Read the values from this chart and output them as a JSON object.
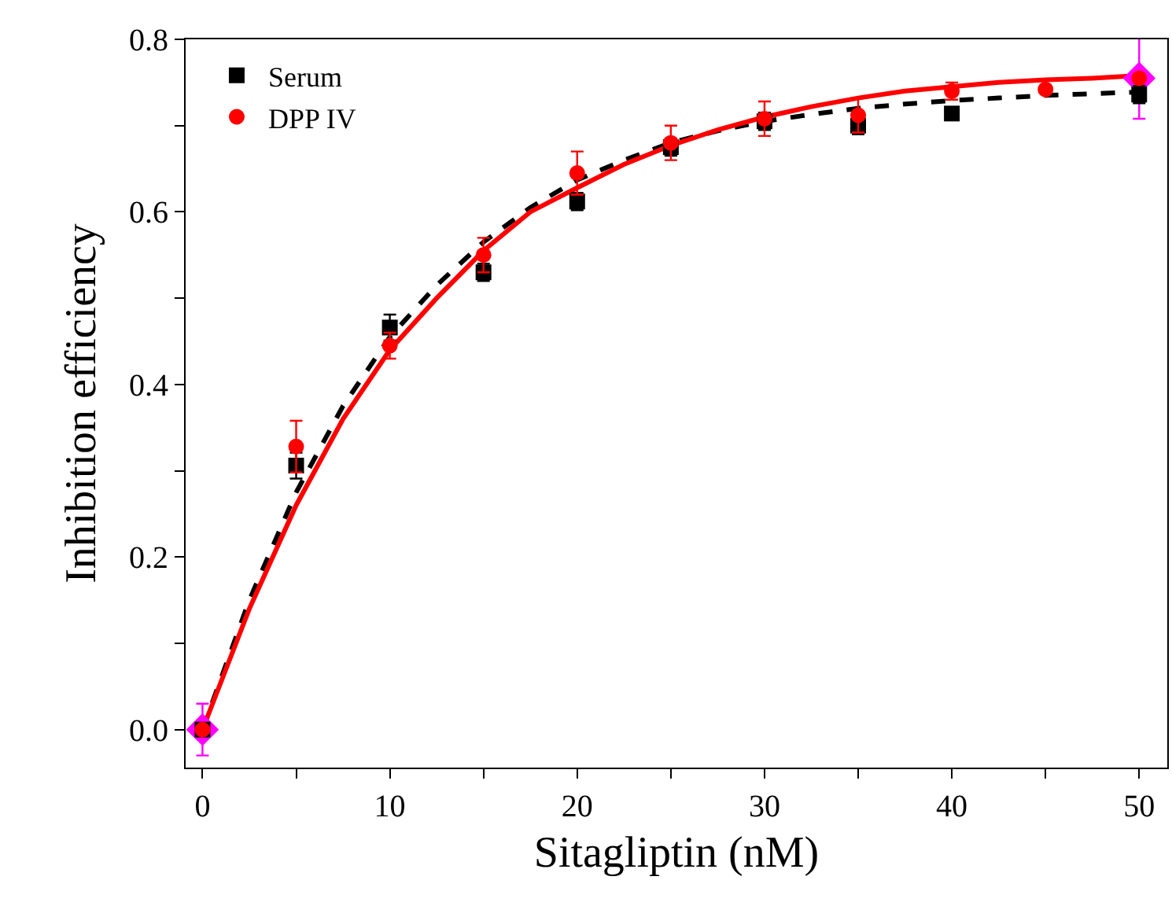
{
  "chart_data": {
    "type": "scatter",
    "xlabel": "Sitagliptin (nM)",
    "ylabel": "Inhibition efficiency",
    "xlim": [
      -0.9,
      51.5
    ],
    "ylim": [
      -0.044,
      0.8
    ],
    "xticks": [
      0,
      {
        "value": 5,
        "label": null
      },
      10,
      {
        "value": 15,
        "label": null
      },
      20,
      {
        "value": 25,
        "label": null
      },
      30,
      {
        "value": 35,
        "label": null
      },
      40,
      {
        "value": 45,
        "label": null
      },
      50
    ],
    "yticks": [
      {
        "value": 0,
        "label": "0.0"
      },
      {
        "value": 0.1,
        "label": null
      },
      {
        "value": 0.2,
        "label": "0.2"
      },
      {
        "value": 0.3,
        "label": null
      },
      {
        "value": 0.4,
        "label": "0.4"
      },
      {
        "value": 0.5,
        "label": null
      },
      {
        "value": 0.6,
        "label": "0.6"
      },
      {
        "value": 0.7,
        "label": null
      },
      {
        "value": 0.8,
        "label": "0.8"
      }
    ],
    "grid": false,
    "legend": "top left",
    "series": [
      {
        "name": "Serum",
        "color": "#000000",
        "marker": "square",
        "x": [
          0,
          5,
          10,
          15,
          20,
          25,
          30,
          35,
          40,
          50
        ],
        "values": [
          0,
          0.306,
          0.466,
          0.53,
          0.612,
          0.675,
          0.705,
          0.7,
          0.714,
          0.736
        ],
        "errors": [
          null,
          0.015,
          0.015,
          0.01,
          0.01,
          0.01,
          0.01,
          0.01,
          null,
          0.01
        ]
      },
      {
        "name": "DPP IV",
        "color": "#ff0000",
        "marker": "circle",
        "x": [
          0,
          5,
          10,
          15,
          20,
          25,
          30,
          35,
          40,
          45,
          50
        ],
        "values": [
          0,
          0.328,
          0.445,
          0.55,
          0.645,
          0.68,
          0.708,
          0.712,
          0.74,
          0.742,
          0.755
        ],
        "errors": [
          null,
          0.03,
          0.015,
          0.02,
          0.025,
          0.02,
          0.02,
          0.02,
          0.01,
          null,
          null
        ]
      },
      {
        "color": "#ff00ff",
        "marker": "diamond",
        "x": [
          0,
          50
        ],
        "values": [
          0,
          0.755
        ],
        "errors": [
          0.03,
          0.047
        ]
      },
      {
        "type": "line",
        "color": "#000000",
        "line_style": "dashed",
        "x": [
          0,
          2.5,
          5,
          7.5,
          10,
          12.5,
          15,
          17.5,
          20,
          22.5,
          25,
          27.5,
          30,
          32.5,
          35,
          37.5,
          40,
          42.5,
          45,
          47.5,
          50
        ],
        "values": [
          0,
          0.15,
          0.275,
          0.375,
          0.455,
          0.515,
          0.565,
          0.605,
          0.637,
          0.66,
          0.68,
          0.694,
          0.705,
          0.713,
          0.72,
          0.725,
          0.729,
          0.732,
          0.735,
          0.737,
          0.739
        ]
      },
      {
        "type": "line",
        "color": "#ff0000",
        "line_style": "solid",
        "x": [
          0,
          2.5,
          5,
          7.5,
          10,
          12.5,
          15,
          17.5,
          20,
          22.5,
          25,
          27.5,
          30,
          32.5,
          35,
          37.5,
          40,
          42.5,
          45,
          47.5,
          50
        ],
        "values": [
          0,
          0.14,
          0.26,
          0.36,
          0.44,
          0.5,
          0.555,
          0.6,
          0.628,
          0.655,
          0.677,
          0.695,
          0.71,
          0.722,
          0.732,
          0.74,
          0.745,
          0.75,
          0.753,
          0.755,
          0.758
        ]
      }
    ]
  }
}
